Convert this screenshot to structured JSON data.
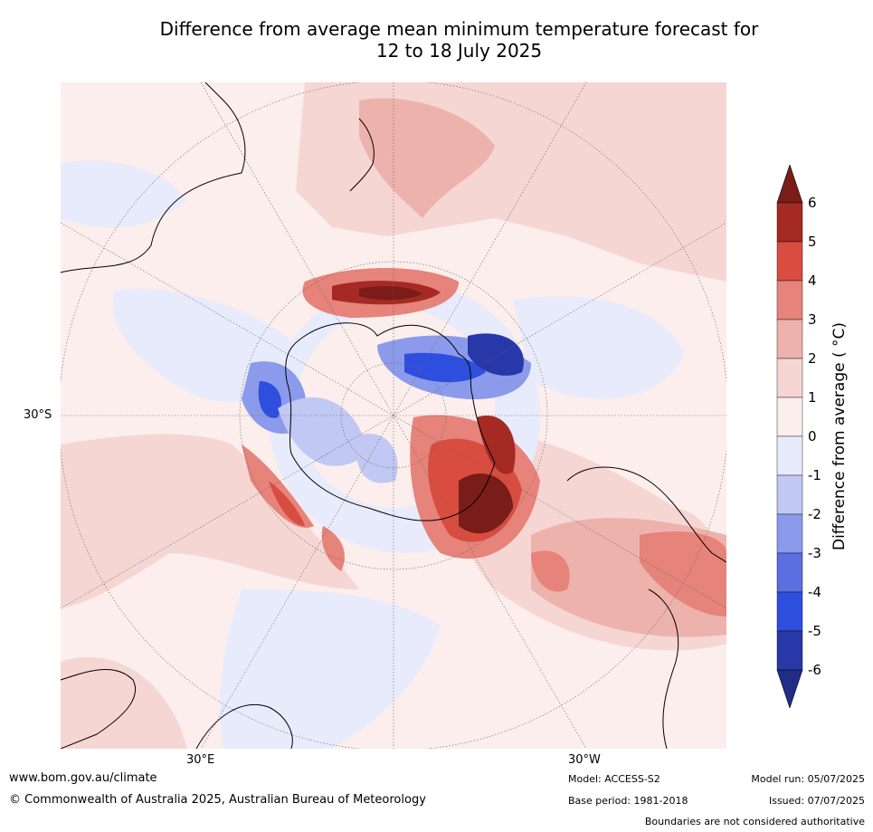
{
  "title_line1": "Difference from average mean minimum temperature forecast for",
  "title_line2": "12 to 18 July 2025",
  "map": {
    "projection": "south polar stereographic",
    "lat_label": "30°S",
    "lon_labels": [
      "30°E",
      "30°W"
    ]
  },
  "colorbar": {
    "label": "Difference from average ( °C)",
    "ticks": [
      "6",
      "5",
      "4",
      "3",
      "2",
      "1",
      "0",
      "-1",
      "-2",
      "-3",
      "-4",
      "-5",
      "-6"
    ],
    "colors": [
      "#7a1c18",
      "#a52a24",
      "#d94c40",
      "#e6837a",
      "#edb2ac",
      "#f5d6d3",
      "#fbeeec",
      "#e8ebfb",
      "#c0c8f3",
      "#8c9aeb",
      "#5b6fe0",
      "#2e4fde",
      "#2838a8",
      "#1f2d87"
    ]
  },
  "footer": {
    "website": "www.bom.gov.au/climate",
    "copyright": "© Commonwealth of Australia 2025, Australian Bureau of Meteorology",
    "model": "Model: ACCESS-S2",
    "base_period": "Base period: 1981-2018",
    "model_run": "Model run: 05/07/2025",
    "issued": "Issued: 07/07/2025",
    "disclaimer": "Boundaries are not considered authoritative"
  }
}
